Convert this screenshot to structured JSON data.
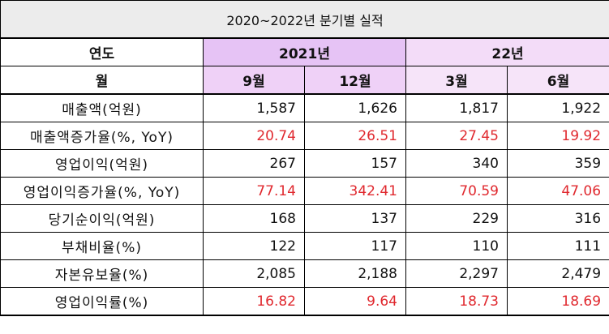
{
  "table": {
    "caption": "2020~2022년 분기별 실적",
    "header_year_label": "연도",
    "header_month_label": "월",
    "years": [
      {
        "label": "2021년",
        "class": "2021"
      },
      {
        "label": "22년",
        "class": "22"
      }
    ],
    "months": [
      "9월",
      "12월",
      "3월",
      "6월"
    ],
    "rows": [
      {
        "label": "매출액(억원)",
        "values": [
          "1,587",
          "1,626",
          "1,817",
          "1,922"
        ],
        "highlight": false
      },
      {
        "label": "매출액증가율(%, YoY)",
        "values": [
          "20.74",
          "26.51",
          "27.45",
          "19.92"
        ],
        "highlight": true
      },
      {
        "label": "영업이익(억원)",
        "values": [
          "267",
          "157",
          "340",
          "359"
        ],
        "highlight": false
      },
      {
        "label": "영업이익증가율(%, YoY)",
        "values": [
          "77.14",
          "342.41",
          "70.59",
          "47.06"
        ],
        "highlight": true
      },
      {
        "label": "당기순이익(억원)",
        "values": [
          "168",
          "137",
          "229",
          "316"
        ],
        "highlight": false
      },
      {
        "label": "부채비율(%)",
        "values": [
          "122",
          "117",
          "110",
          "111"
        ],
        "highlight": false
      },
      {
        "label": "자본유보율(%)",
        "values": [
          "2,085",
          "2,188",
          "2,297",
          "2,479"
        ],
        "highlight": false
      },
      {
        "label": "영업이익률(%)",
        "values": [
          "16.82",
          "9.64",
          "18.73",
          "18.69"
        ],
        "highlight": true
      }
    ]
  },
  "colors": {
    "highlight_text": "#e0282e",
    "year_2021_bg": "#e6c3f5",
    "year_22_bg": "#f3dcf8",
    "caption_bg": "#ececec"
  }
}
